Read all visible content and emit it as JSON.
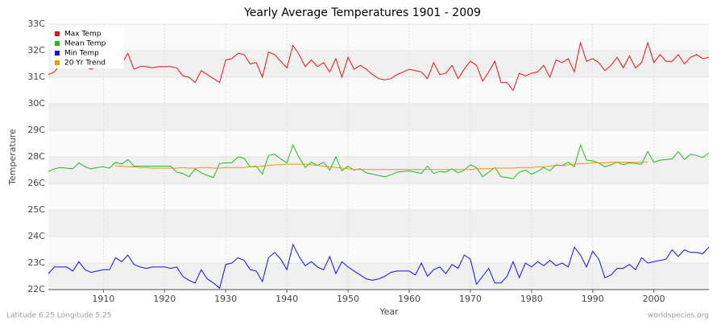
{
  "chart_data": {
    "type": "line",
    "title": "Yearly Average Temperatures 1901 - 2009",
    "x_label": "Year",
    "y_label": "Temperature",
    "annotations": [
      "Latitude 6.25 Longitude 5.25",
      "worldspecies.org"
    ],
    "x": [
      1901,
      1902,
      1903,
      1904,
      1905,
      1906,
      1907,
      1908,
      1909,
      1910,
      1911,
      1912,
      1913,
      1914,
      1915,
      1916,
      1917,
      1918,
      1919,
      1920,
      1921,
      1922,
      1923,
      1924,
      1925,
      1926,
      1927,
      1928,
      1929,
      1930,
      1931,
      1932,
      1933,
      1934,
      1935,
      1936,
      1937,
      1938,
      1939,
      1940,
      1941,
      1942,
      1943,
      1944,
      1945,
      1946,
      1947,
      1948,
      1949,
      1950,
      1951,
      1952,
      1953,
      1954,
      1955,
      1956,
      1957,
      1958,
      1959,
      1960,
      1961,
      1962,
      1963,
      1964,
      1965,
      1966,
      1967,
      1968,
      1969,
      1970,
      1971,
      1972,
      1973,
      1974,
      1975,
      1976,
      1977,
      1978,
      1979,
      1980,
      1981,
      1982,
      1983,
      1984,
      1985,
      1986,
      1987,
      1988,
      1989,
      1990,
      1991,
      1992,
      1993,
      1994,
      1995,
      1996,
      1997,
      1998,
      1999,
      2000,
      2001,
      2002,
      2003,
      2004,
      2005,
      2006,
      2007,
      2008,
      2009
    ],
    "xlim": [
      1901,
      2009
    ],
    "xticks": [
      1910,
      1920,
      1930,
      1940,
      1950,
      1960,
      1970,
      1980,
      1990,
      2000
    ],
    "ylim": [
      22,
      33
    ],
    "yticks": [
      {
        "value": 22,
        "label": "22C"
      },
      {
        "value": 23,
        "label": "23C"
      },
      {
        "value": 24,
        "label": "24C"
      },
      {
        "value": 25,
        "label": "25C"
      },
      {
        "value": 26,
        "label": "26C"
      },
      {
        "value": 28,
        "label": "28C"
      },
      {
        "value": 29,
        "label": "29C"
      },
      {
        "value": 30,
        "label": "30C"
      },
      {
        "value": 31,
        "label": "31C"
      },
      {
        "value": 32,
        "label": "32C"
      },
      {
        "value": 33,
        "label": "33C"
      }
    ],
    "grid": true,
    "legend_position": "top-left",
    "series": [
      {
        "name": "Max Temp",
        "color": "#ee1111",
        "values": [
          31.1,
          31.2,
          31.5,
          31.4,
          31.5,
          31.7,
          31.4,
          31.3,
          31.4,
          31.5,
          31.5,
          31.4,
          31.5,
          31.9,
          31.3,
          31.4,
          31.4,
          31.35,
          31.4,
          31.4,
          31.4,
          31.35,
          31.05,
          31.0,
          30.8,
          31.25,
          31.1,
          30.95,
          30.8,
          31.65,
          31.7,
          31.9,
          31.85,
          31.5,
          31.55,
          31.0,
          31.95,
          31.85,
          31.6,
          31.35,
          32.2,
          31.85,
          31.4,
          31.65,
          31.4,
          31.55,
          31.2,
          31.7,
          31.0,
          31.75,
          31.3,
          31.45,
          31.3,
          31.1,
          30.95,
          30.9,
          30.95,
          31.1,
          31.2,
          31.3,
          31.25,
          31.2,
          30.95,
          31.55,
          31.1,
          31.15,
          31.45,
          30.95,
          31.3,
          31.6,
          31.45,
          30.85,
          31.2,
          31.6,
          30.8,
          30.8,
          30.5,
          31.15,
          31.05,
          31.15,
          31.2,
          31.45,
          31.0,
          31.65,
          31.55,
          31.7,
          31.2,
          32.3,
          31.6,
          31.7,
          31.55,
          31.25,
          31.45,
          31.75,
          31.35,
          31.8,
          31.35,
          31.55,
          32.3,
          31.55,
          31.85,
          31.6,
          31.6,
          31.85,
          31.5,
          31.75,
          31.85,
          31.7,
          31.75
        ]
      },
      {
        "name": "Mean Temp",
        "color": "#22bb22",
        "values": [
          26.9,
          27.1,
          27.2,
          27.15,
          27.1,
          27.55,
          27.25,
          27.1,
          27.2,
          27.25,
          27.15,
          27.6,
          27.45,
          27.8,
          27.3,
          27.3,
          27.3,
          27.3,
          27.3,
          27.3,
          27.3,
          26.85,
          26.75,
          26.5,
          27.1,
          26.8,
          26.6,
          26.45,
          27.5,
          27.55,
          27.55,
          28.0,
          27.9,
          27.25,
          27.3,
          26.7,
          28.05,
          28.1,
          27.85,
          27.55,
          28.45,
          27.95,
          27.2,
          27.6,
          27.35,
          27.6,
          27.0,
          28.0,
          26.95,
          27.3,
          27.0,
          27.1,
          26.8,
          26.7,
          26.6,
          26.5,
          26.65,
          26.85,
          26.9,
          26.95,
          26.85,
          26.75,
          27.3,
          26.75,
          26.9,
          26.85,
          27.1,
          26.8,
          27.0,
          27.4,
          27.2,
          26.5,
          26.85,
          27.2,
          26.5,
          26.45,
          26.35,
          26.85,
          27.0,
          26.7,
          26.9,
          27.2,
          26.95,
          27.4,
          27.35,
          27.6,
          27.25,
          28.45,
          27.75,
          27.7,
          27.55,
          27.25,
          27.4,
          27.6,
          27.4,
          27.55,
          27.5,
          27.45,
          28.2,
          27.6,
          27.75,
          27.8,
          27.85,
          28.2,
          27.8,
          28.1,
          28.05,
          27.95,
          28.15
        ]
      },
      {
        "name": "Min Temp",
        "color": "#1111ee",
        "values": [
          22.6,
          22.85,
          22.85,
          22.85,
          22.7,
          23.05,
          22.75,
          22.65,
          22.7,
          22.75,
          22.75,
          23.2,
          23.05,
          23.3,
          22.95,
          22.85,
          22.8,
          22.85,
          22.85,
          22.85,
          22.8,
          22.85,
          22.5,
          22.35,
          22.25,
          22.75,
          22.4,
          22.25,
          22.05,
          22.95,
          23.0,
          23.2,
          23.1,
          22.75,
          22.7,
          22.3,
          23.2,
          23.4,
          23.15,
          22.75,
          23.7,
          23.25,
          22.9,
          23.05,
          22.85,
          22.75,
          23.25,
          22.6,
          23.05,
          22.85,
          22.7,
          22.55,
          22.4,
          22.35,
          22.4,
          22.5,
          22.65,
          22.7,
          22.7,
          22.7,
          22.55,
          23.0,
          22.5,
          22.75,
          22.85,
          22.6,
          22.95,
          22.8,
          23.3,
          23.15,
          22.2,
          22.5,
          22.8,
          22.25,
          22.25,
          22.5,
          23.05,
          22.45,
          23.0,
          22.85,
          23.05,
          22.9,
          23.1,
          22.9,
          23.0,
          22.85,
          23.6,
          23.3,
          22.85,
          23.45,
          23.15,
          22.45,
          22.55,
          22.8,
          22.8,
          22.95,
          22.75,
          23.2,
          23.0,
          23.05,
          23.1,
          23.15,
          23.5,
          23.25,
          23.5,
          23.4,
          23.4,
          23.35,
          23.6
        ]
      },
      {
        "name": "20 Yr Trend",
        "color": "#ee9900",
        "values": [
          null,
          null,
          null,
          null,
          null,
          null,
          null,
          null,
          null,
          null,
          null,
          27.3,
          27.3,
          27.25,
          27.25,
          27.2,
          27.2,
          27.15,
          27.15,
          27.15,
          27.15,
          27.15,
          27.2,
          27.15,
          27.15,
          27.2,
          27.2,
          27.15,
          27.15,
          27.2,
          27.2,
          27.2,
          27.2,
          27.25,
          27.25,
          27.3,
          27.35,
          27.4,
          27.4,
          27.45,
          27.45,
          27.45,
          27.45,
          27.4,
          27.35,
          27.3,
          27.25,
          27.2,
          27.15,
          27.1,
          27.05,
          27.05,
          27.05,
          27.05,
          27.05,
          27.05,
          27.05,
          27.05,
          27.05,
          27.05,
          27.05,
          27.05,
          27.05,
          27.05,
          27.05,
          27.05,
          27.05,
          27.05,
          27.05,
          27.05,
          27.1,
          27.1,
          27.1,
          27.15,
          27.15,
          27.15,
          27.15,
          27.2,
          27.2,
          27.2,
          27.25,
          27.25,
          27.3,
          27.35,
          27.35,
          27.4,
          27.45,
          27.5,
          27.5,
          27.55,
          27.55,
          27.55,
          27.6,
          27.6,
          27.6,
          27.6,
          27.6,
          27.6,
          27.6,
          null,
          null,
          null,
          null,
          null,
          null,
          null,
          null,
          null,
          null
        ]
      }
    ]
  }
}
